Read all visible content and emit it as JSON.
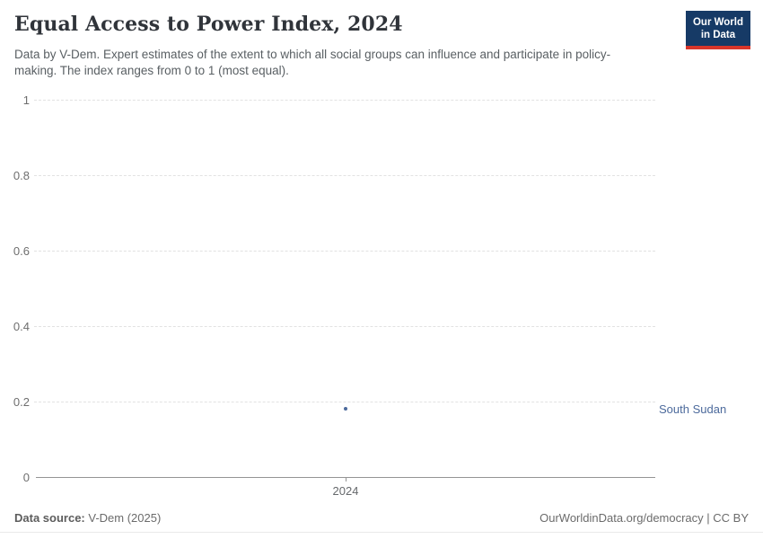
{
  "header": {
    "title": "Equal Access to Power Index, 2024",
    "subtitle": "Data by V-Dem. Expert estimates of the extent to which all social groups can influence and participate in policy-making. The index ranges from 0 to 1 (most equal)."
  },
  "logo": {
    "line1": "Our World",
    "line2": "in Data",
    "bg_color": "#163a66",
    "accent_color": "#d8352a"
  },
  "chart_data": {
    "type": "scatter",
    "title": "Equal Access to Power Index, 2024",
    "xlabel": "",
    "ylabel": "",
    "ylim": [
      0,
      1
    ],
    "yticks": [
      0,
      0.2,
      0.4,
      0.6,
      0.8,
      1
    ],
    "xticks": [
      2024
    ],
    "grid": "horizontal-dashed",
    "legend_position": "right-of-point",
    "series": [
      {
        "name": "South Sudan",
        "color": "#4c6a9c",
        "points": [
          {
            "x": 2024,
            "y": 0.18
          }
        ]
      }
    ]
  },
  "footer": {
    "source_label": "Data source:",
    "source_value": "V-Dem (2025)",
    "credit": "OurWorldinData.org/democracy | CC BY"
  }
}
